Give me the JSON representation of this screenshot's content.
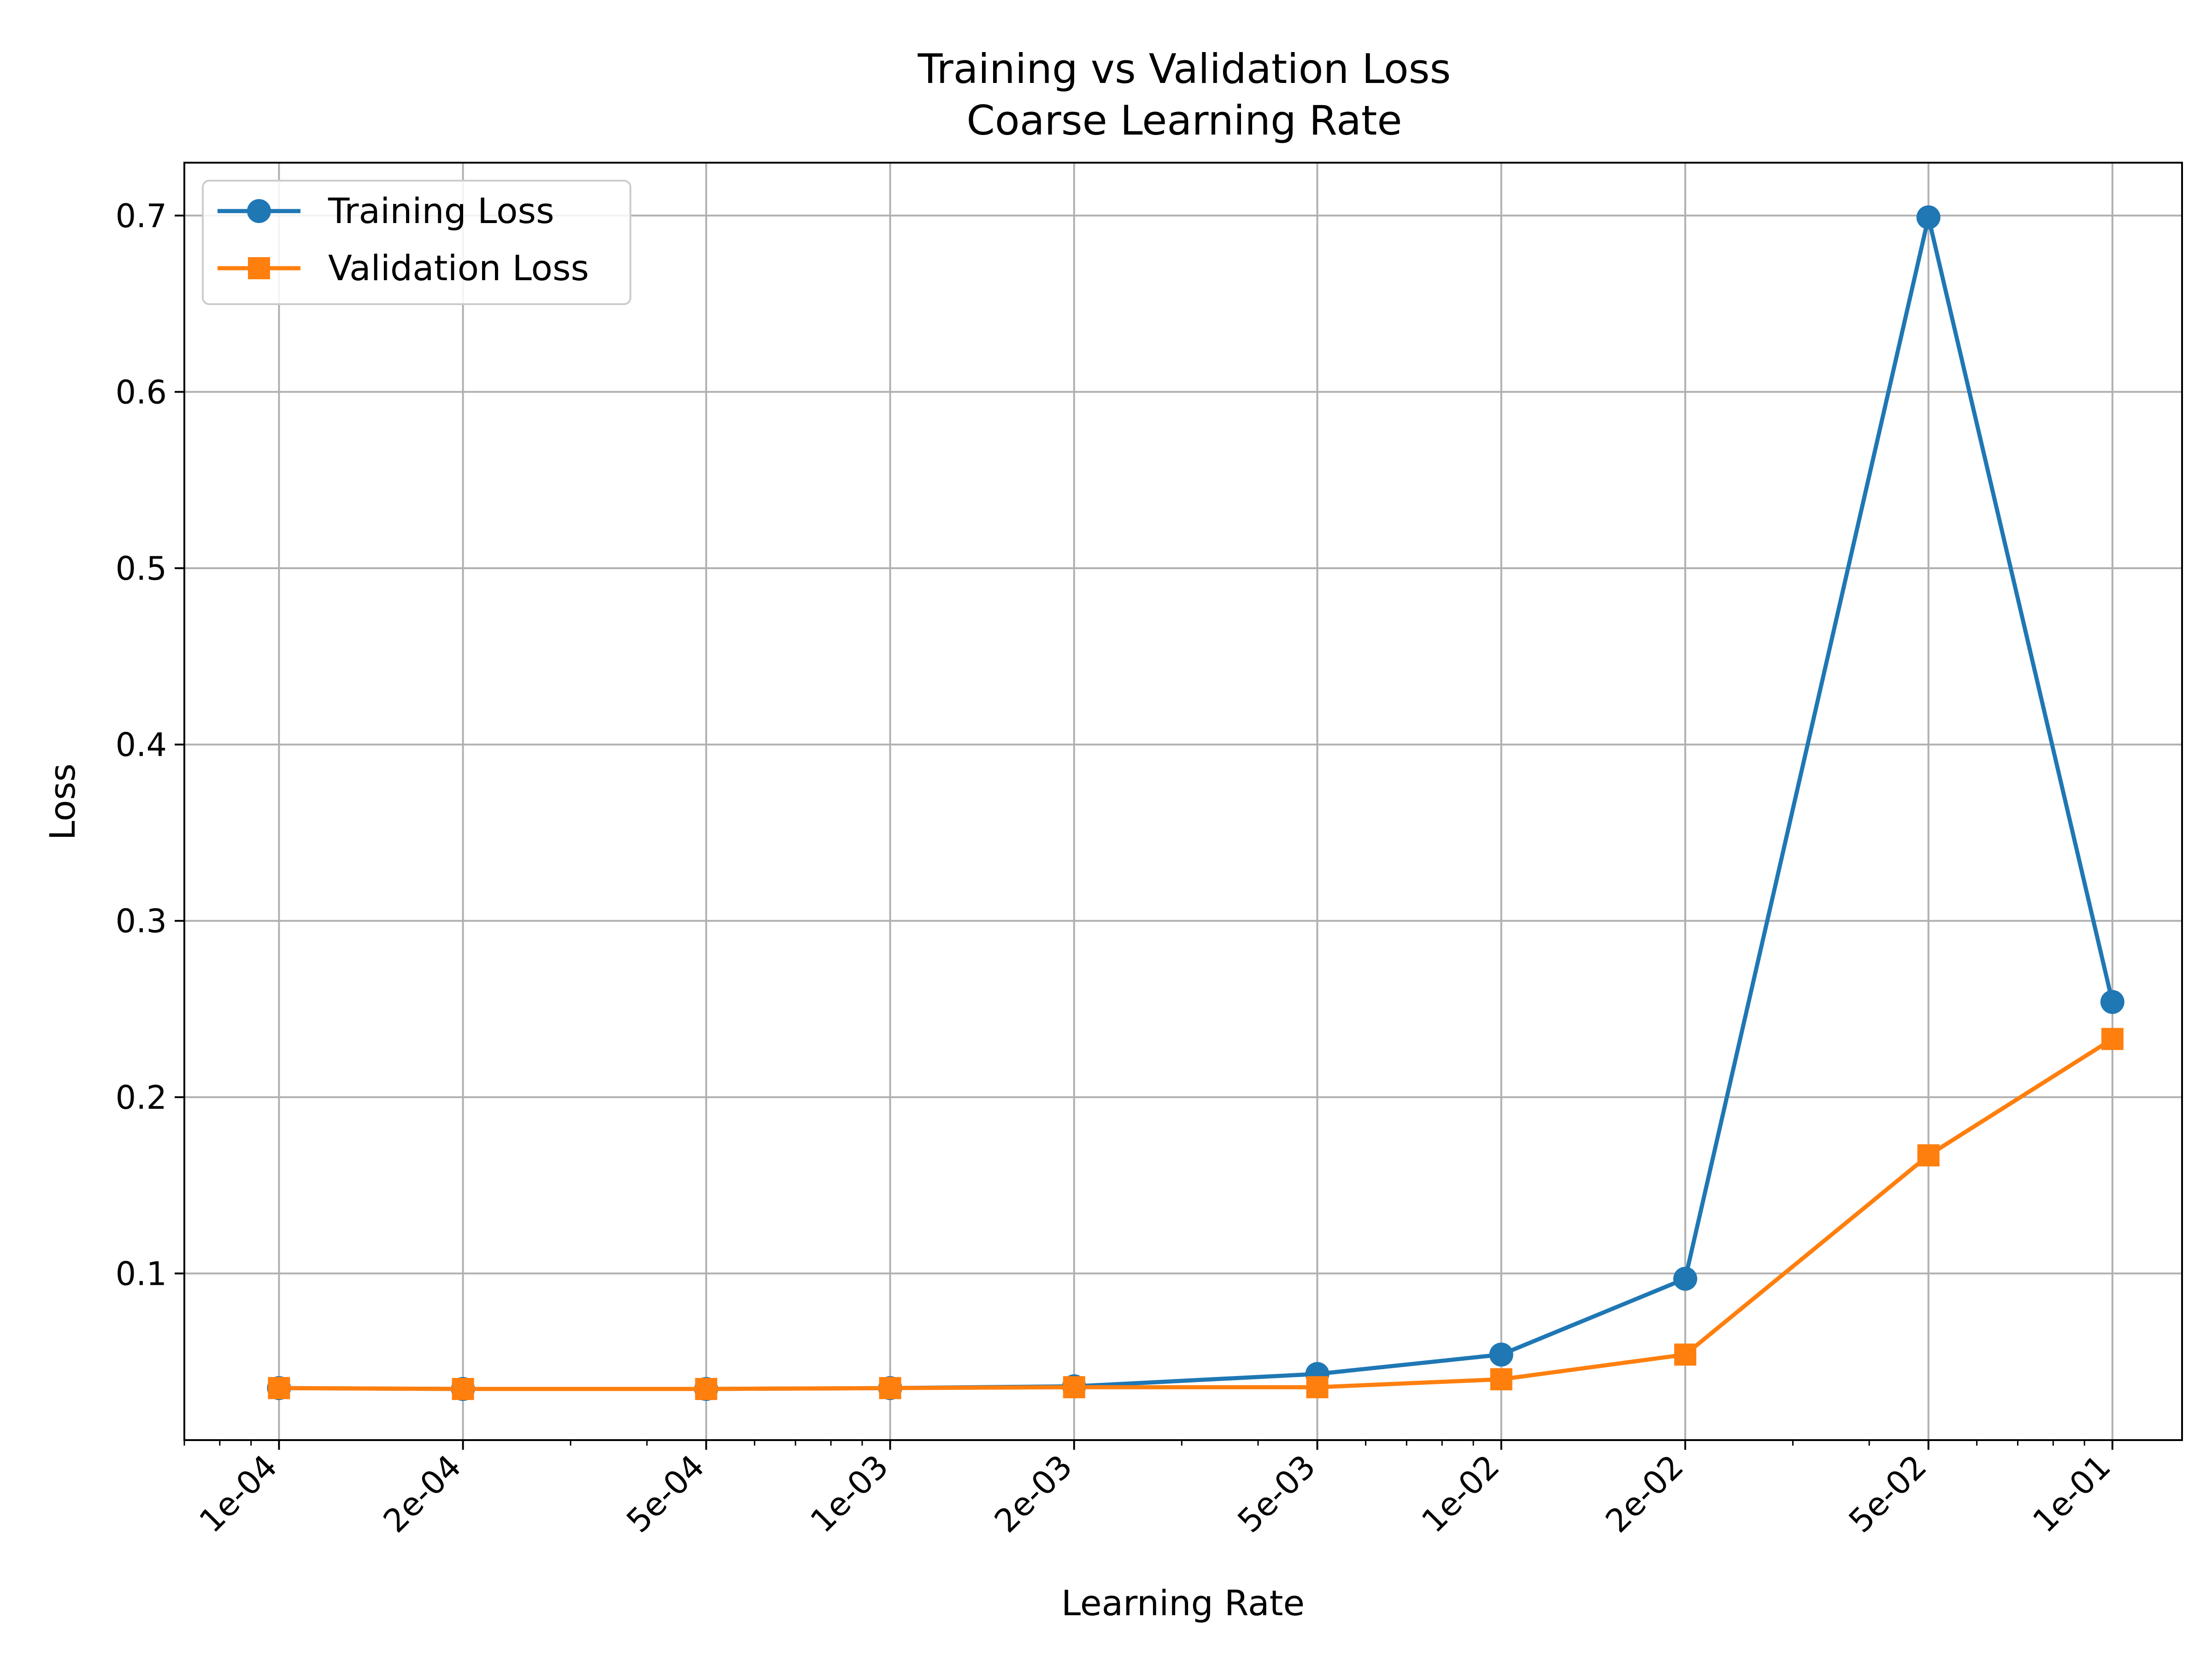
{
  "chart_data": {
    "type": "line",
    "title": "Training vs Validation Loss",
    "subtitle": "Coarse Learning Rate",
    "xlabel": "Learning Rate",
    "ylabel": "Loss",
    "xscale": "log",
    "xlim": [
      7e-05,
      0.13
    ],
    "ylim": [
      0.0055,
      0.73
    ],
    "grid": true,
    "legend_position": "top-left",
    "x": [
      0.0001,
      0.0002,
      0.0005,
      0.001,
      0.002,
      0.005,
      0.01,
      0.02,
      0.05,
      0.1
    ],
    "x_tick_labels": [
      "1e-04",
      "2e-04",
      "5e-04",
      "1e-03",
      "2e-03",
      "5e-03",
      "1e-02",
      "2e-02",
      "5e-02",
      "1e-01"
    ],
    "y_ticks": [
      0.1,
      0.2,
      0.3,
      0.4,
      0.5,
      0.6,
      0.7
    ],
    "y_tick_labels": [
      "0.1",
      "0.2",
      "0.3",
      "0.4",
      "0.5",
      "0.6",
      "0.7"
    ],
    "series": [
      {
        "name": "Training Loss",
        "color": "#1f77b4",
        "marker": "circle",
        "values": [
          0.035,
          0.0345,
          0.0345,
          0.035,
          0.036,
          0.043,
          0.054,
          0.097,
          0.699,
          0.254
        ]
      },
      {
        "name": "Validation Loss",
        "color": "#ff7f0e",
        "marker": "square",
        "values": [
          0.035,
          0.0345,
          0.0345,
          0.035,
          0.0355,
          0.0355,
          0.04,
          0.054,
          0.167,
          0.233
        ]
      }
    ]
  }
}
